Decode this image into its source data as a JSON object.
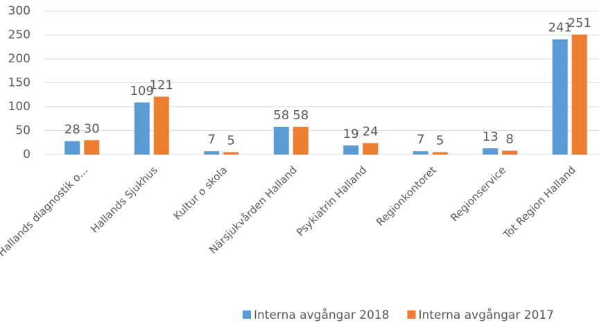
{
  "chart_data": {
    "type": "bar",
    "categories": [
      "Hallands diagnostik o…",
      "Hallands Sjukhus",
      "Kultur o skola",
      "Närsjukvården Halland",
      "Psykiatrin Halland",
      "Regionkontoret",
      "Regionservice",
      "Tot Region Halland"
    ],
    "series": [
      {
        "name": "Interna avgångar 2018",
        "color": "#5b9bd5",
        "values": [
          28,
          109,
          7,
          58,
          19,
          7,
          13,
          241
        ]
      },
      {
        "name": "Interna avgångar 2017",
        "color": "#ed7d31",
        "values": [
          30,
          121,
          5,
          58,
          24,
          5,
          8,
          251
        ]
      }
    ],
    "ylim": [
      0,
      300
    ],
    "yticks": [
      0,
      50,
      100,
      150,
      200,
      250,
      300
    ],
    "grid": true,
    "legend": "bottom"
  }
}
